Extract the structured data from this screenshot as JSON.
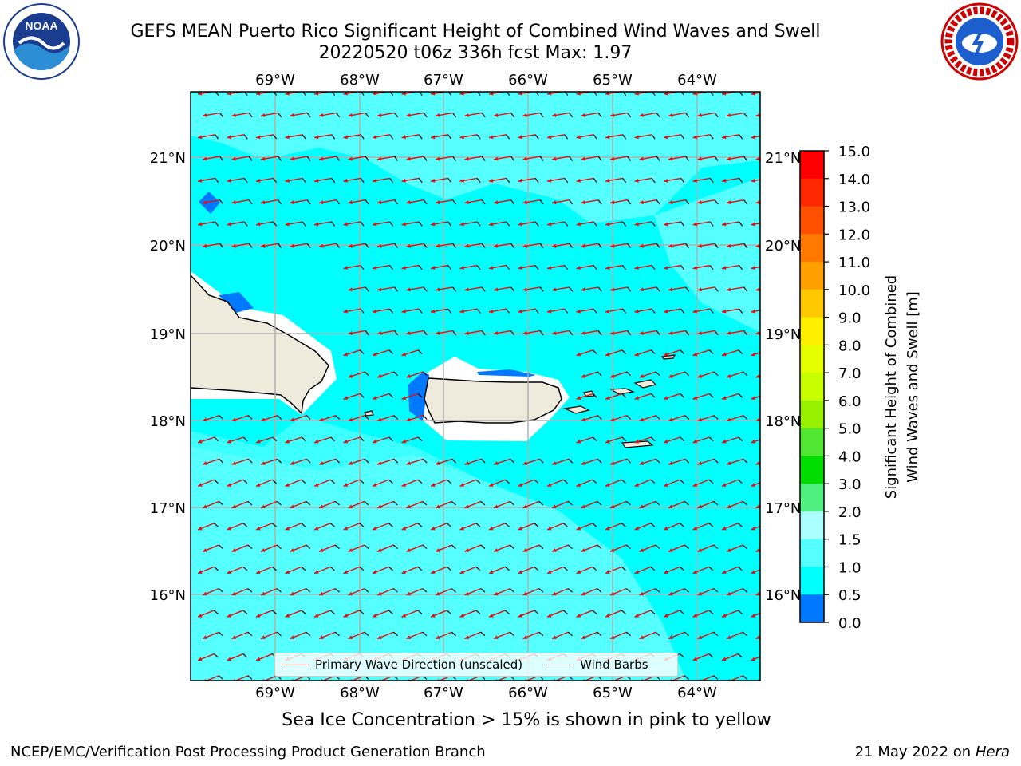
{
  "header": {
    "title_line1": "GEFS MEAN Puerto Rico Significant Height of Combined Wind Waves and Swell",
    "title_line2": "20220520 t06z 336h fcst   Max: 1.97"
  },
  "logos": {
    "left": "NOAA",
    "right": "NATIONAL WEATHER SERVICE"
  },
  "map": {
    "lon_labels": [
      "69°W",
      "68°W",
      "67°W",
      "66°W",
      "65°W",
      "64°W"
    ],
    "lat_labels": [
      "21°N",
      "20°N",
      "19°N",
      "18°N",
      "17°N",
      "16°N"
    ],
    "colors": {
      "ocean": "#00ffff",
      "swell": "#55ffff",
      "low": "#0078ff",
      "land": "#efebdc"
    }
  },
  "colorbar": {
    "label": "Significant Height of Combined Wind Waves and Swell [m]",
    "label_line1": "Significant Height of Combined",
    "label_line2": "Wind Waves and Swell [m]",
    "ticks": [
      "15.0",
      "14.0",
      "13.0",
      "12.0",
      "11.0",
      "10.0",
      "9.0",
      "8.0",
      "7.0",
      "6.0",
      "5.0",
      "4.0",
      "3.0",
      "2.0",
      "1.5",
      "1.0",
      "0.5",
      "0.0"
    ],
    "colors": [
      "#ff0000",
      "#ff2800",
      "#ff5000",
      "#ff7800",
      "#ffa000",
      "#ffc800",
      "#fff000",
      "#e6ff00",
      "#c8ff00",
      "#96f000",
      "#50e632",
      "#00dc00",
      "#50f080",
      "#aaffff",
      "#55ffff",
      "#00ffff",
      "#0078ff",
      "#0000ff"
    ]
  },
  "legend": {
    "primary_wave": "Primary Wave Direction (unscaled)",
    "wind_barbs": "Wind Barbs"
  },
  "notes": {
    "sea_ice": "Sea Ice Concentration > 15% is shown in pink to yellow",
    "credit": "NCEP/EMC/Verification Post Processing Product Generation Branch",
    "date": "21 May 2022 on",
    "machine": "Hera"
  }
}
